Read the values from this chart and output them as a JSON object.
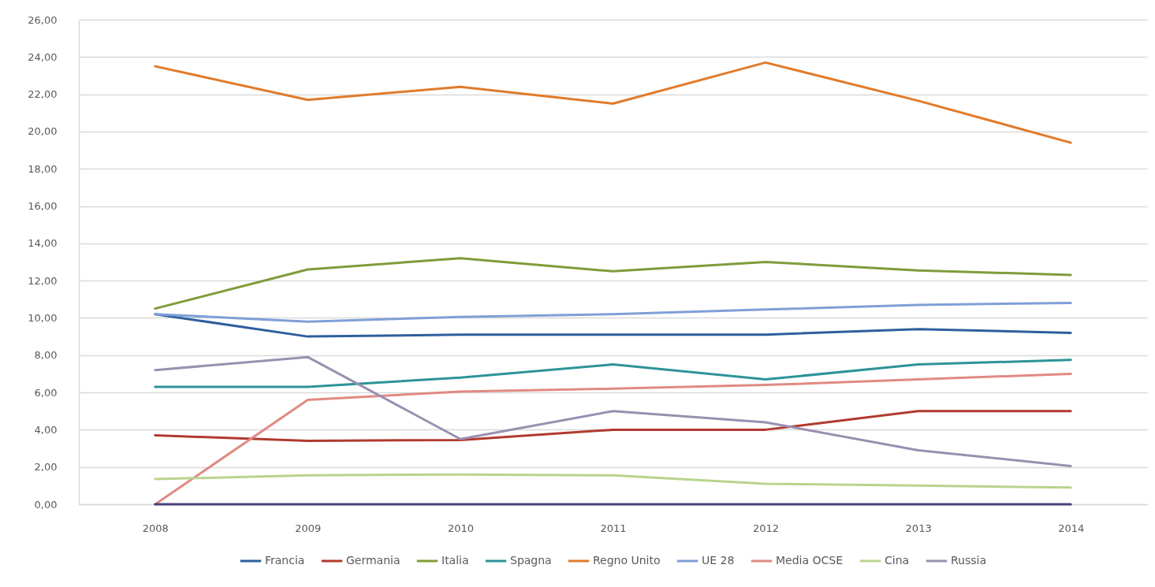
{
  "chart_data": {
    "type": "line",
    "categories": [
      "2008",
      "2009",
      "2010",
      "2011",
      "2012",
      "2013",
      "2014"
    ],
    "ylim": [
      0,
      26
    ],
    "yticks": [
      {
        "value": 0,
        "label": "0,00"
      },
      {
        "value": 2,
        "label": "2,00"
      },
      {
        "value": 4,
        "label": "4,00"
      },
      {
        "value": 6,
        "label": "6,00"
      },
      {
        "value": 8,
        "label": "8,00"
      },
      {
        "value": 10,
        "label": "10,00"
      },
      {
        "value": 12,
        "label": "12,00"
      },
      {
        "value": 14,
        "label": "14,00"
      },
      {
        "value": 16,
        "label": "16,00"
      },
      {
        "value": 18,
        "label": "18,00"
      },
      {
        "value": 20,
        "label": "20,00"
      },
      {
        "value": 22,
        "label": "22,00"
      },
      {
        "value": 24,
        "label": "24,00"
      },
      {
        "value": 26,
        "label": "26,00"
      }
    ],
    "grid": "y",
    "legend": "bottom",
    "series": [
      {
        "name": "Francia",
        "color": "#2e5f9e",
        "values": [
          10.2,
          9.0,
          9.1,
          9.1,
          9.1,
          9.4,
          9.2
        ]
      },
      {
        "name": "Germania",
        "color": "#b03a2e",
        "values": [
          3.7,
          3.4,
          3.45,
          4.0,
          4.0,
          5.0,
          5.0
        ]
      },
      {
        "name": "Italia",
        "color": "#7f9c3a",
        "values": [
          10.5,
          12.6,
          13.2,
          12.5,
          13.0,
          12.55,
          12.3
        ]
      },
      {
        "name": "Spagna",
        "color": "#2d9399",
        "values": [
          6.3,
          6.3,
          6.8,
          7.5,
          6.7,
          7.5,
          7.75
        ]
      },
      {
        "name": "Regno Unito",
        "color": "#e07b2b",
        "values": [
          23.5,
          21.7,
          22.4,
          21.5,
          23.7,
          21.65,
          19.4
        ]
      },
      {
        "name": "UE 28",
        "color": "#7f9fd6",
        "values": [
          10.2,
          9.8,
          10.05,
          10.2,
          10.45,
          10.7,
          10.8
        ]
      },
      {
        "name": "Media OCSE",
        "color": "#e08a82",
        "values": [
          0,
          5.6,
          6.05,
          6.2,
          6.4,
          6.7,
          7.0
        ]
      },
      {
        "name": "Cina",
        "color": "#b8d48e",
        "values": [
          1.35,
          1.55,
          1.6,
          1.55,
          1.1,
          1.0,
          0.9
        ]
      },
      {
        "name": "Russia",
        "color": "#9a8fb0",
        "values": [
          7.2,
          7.9,
          3.5,
          5.0,
          4.4,
          2.9,
          2.05
        ]
      },
      {
        "color": "#4b3f7a",
        "values": [
          0,
          0,
          0,
          0,
          0,
          0,
          0
        ]
      }
    ]
  }
}
